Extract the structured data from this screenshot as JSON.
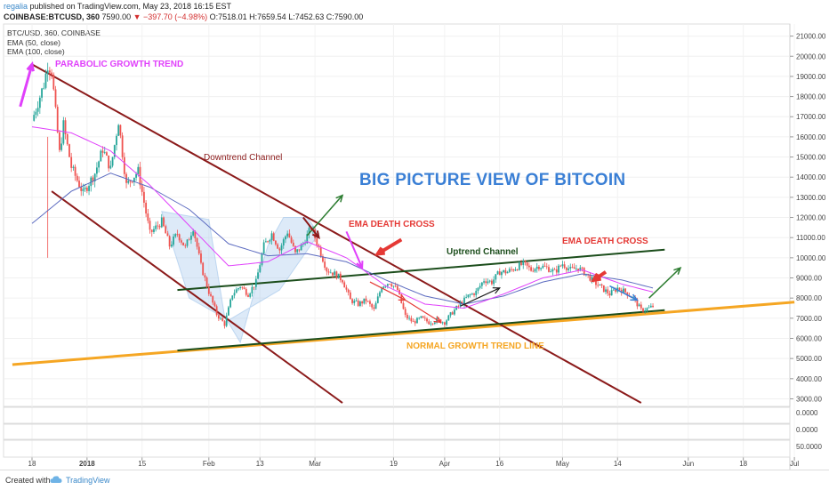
{
  "header": {
    "user": "regalia",
    "published": "published on TradingView.com, May 23, 2018 16:15 EST",
    "symbol": "COINBASE:BTCUSD, 360",
    "last_price": "7590.00",
    "change": "▼ −397.70 (−4.98%)",
    "o": "O:7518.01",
    "h": "H:7659.54",
    "l": "L:7452.63",
    "c": "C:7590.00"
  },
  "legend": {
    "pair": "BTC/USD, 360, COINBASE",
    "ema50": "EMA (50, close)",
    "ema100": "EMA (100, close)"
  },
  "annotations": {
    "parabolic": "PARABOLIC GROWTH TREND",
    "downtrend": "Downtrend Channel",
    "big_picture": "BIG PICTURE VIEW OF BITCOIN",
    "ema_death_1": "EMA DEATH CROSS",
    "ema_death_2": "EMA DEATH CROSS",
    "uptrend": "Uptrend Channel",
    "normal_growth": "NORMAL GROWTH TREND LINE"
  },
  "colors": {
    "up_candle": "#26a69a",
    "down_candle": "#ef5350",
    "ema50": "#e040fb",
    "ema100": "#5c6bc0",
    "downtrend_channel": "#8b1a1a",
    "uptrend_channel": "#1b4d1b",
    "growth_trend": "#f5a623",
    "annotation_pink": "#e040fb",
    "annotation_blue": "#3a7fd5",
    "annotation_red": "#e53935",
    "annotation_orange": "#f5a623",
    "annotation_green": "#2e7d32"
  },
  "footer": {
    "created_with": "Created with",
    "brand": "TradingView"
  },
  "chart_data": {
    "type": "candlestick",
    "title": "BTC/USD, 360, COINBASE",
    "xlabel": "",
    "ylabel": "",
    "ylim": [
      2600,
      21600
    ],
    "y_ticks": [
      "21000.00",
      "20000.00",
      "19000.00",
      "18000.00",
      "17000.00",
      "16000.00",
      "15000.00",
      "14000.00",
      "13000.00",
      "12000.00",
      "11000.00",
      "10000.00",
      "9000.00",
      "8000.00",
      "7000.00",
      "6000.00",
      "5000.00",
      "4000.00",
      "3000.00"
    ],
    "x_tick_labels": [
      "18",
      "2018",
      "15",
      "Feb",
      "13",
      "Mar",
      "19",
      "Apr",
      "16",
      "May",
      "14",
      "Jun",
      "18",
      "Jul"
    ],
    "x_tick_days": [
      0,
      14,
      28,
      45,
      58,
      72,
      92,
      105,
      119,
      135,
      149,
      167,
      181,
      194
    ],
    "oscillator_labels": [
      "0.0000",
      "0.0000",
      "50.0000"
    ],
    "price_path_days": [
      0,
      1,
      3,
      4,
      5,
      6,
      7,
      8,
      10,
      13,
      16,
      18,
      20,
      22,
      24,
      27,
      30,
      33,
      35,
      37,
      39,
      41,
      43,
      45,
      47,
      49,
      51,
      53,
      55,
      57,
      59,
      61,
      63,
      65,
      67,
      69,
      71,
      73,
      75,
      77,
      79,
      81,
      83,
      85,
      87,
      89,
      91,
      93,
      95,
      97,
      99,
      101,
      103,
      105,
      107,
      109,
      111,
      113,
      115,
      117,
      119,
      121,
      123,
      125,
      127,
      129,
      131,
      133,
      135,
      137,
      139,
      141,
      143,
      145,
      147,
      149,
      151,
      153,
      155,
      157,
      158
    ],
    "price_path_close": [
      16800,
      17400,
      18600,
      19600,
      19300,
      17200,
      15200,
      16600,
      14500,
      13200,
      14200,
      15400,
      14400,
      16800,
      13600,
      14300,
      11200,
      11800,
      10600,
      11200,
      10500,
      11500,
      9600,
      8300,
      7200,
      6700,
      8200,
      8600,
      8200,
      8800,
      10600,
      11200,
      10400,
      11300,
      10200,
      10700,
      11500,
      10500,
      9400,
      9200,
      8900,
      7900,
      7700,
      7900,
      7400,
      8600,
      8800,
      8400,
      7100,
      6800,
      7000,
      6800,
      6900,
      6800,
      7300,
      7700,
      8100,
      8300,
      8900,
      8800,
      9300,
      9300,
      9500,
      9700,
      9400,
      9600,
      9500,
      9300,
      9700,
      9400,
      9500,
      9200,
      8800,
      8500,
      8200,
      8500,
      8300,
      8000,
      7400,
      7500,
      7590
    ],
    "ema50_days": [
      0,
      10,
      20,
      30,
      40,
      50,
      60,
      70,
      80,
      90,
      100,
      110,
      120,
      130,
      140,
      150,
      158
    ],
    "ema50_vals": [
      16500,
      16200,
      15300,
      13600,
      11600,
      9600,
      9800,
      10800,
      10000,
      8600,
      7700,
      7500,
      8200,
      9000,
      9400,
      8700,
      8300
    ],
    "ema100_days": [
      0,
      10,
      20,
      30,
      40,
      50,
      60,
      70,
      80,
      90,
      100,
      110,
      120,
      130,
      140,
      150,
      158
    ],
    "ema100_vals": [
      11700,
      13300,
      14200,
      13500,
      12400,
      10700,
      10100,
      10200,
      9800,
      8900,
      8100,
      7700,
      8100,
      8800,
      9200,
      8900,
      8500
    ],
    "downtrend_upper": [
      [
        0,
        19600
      ],
      [
        155,
        2800
      ]
    ],
    "downtrend_lower": [
      [
        5,
        13300
      ],
      [
        79,
        2800
      ]
    ],
    "uptrend_upper": [
      [
        37,
        8400
      ],
      [
        161,
        10400
      ]
    ],
    "uptrend_lower": [
      [
        37,
        5400
      ],
      [
        161,
        7400
      ]
    ],
    "growth_trend_line": [
      [
        -5,
        4700
      ],
      [
        194,
        7800
      ]
    ]
  }
}
